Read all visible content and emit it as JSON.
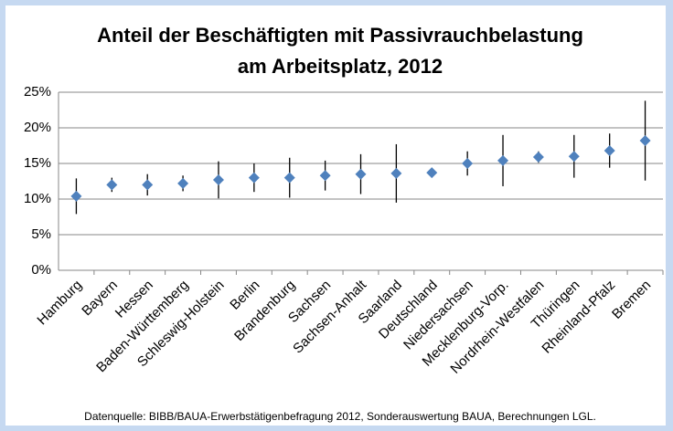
{
  "chart_data": {
    "type": "errorbar",
    "title": [
      "Anteil der Beschäftigten mit Passivrauchbelastung",
      "am Arbeitsplatz, 2012"
    ],
    "categories": [
      "Hamburg",
      "Bayern",
      "Hessen",
      "Baden-Württemberg",
      "Schleswig-Holstein",
      "Berlin",
      "Brandenburg",
      "Sachsen",
      "Sachsen-Anhalt",
      "Saarland",
      "Deutschland",
      "Niedersachsen",
      "Mecklenburg-Vorp.",
      "Nordrhein-Westfalen",
      "Thüringen",
      "Rheinland-Pfalz",
      "Bremen"
    ],
    "values": [
      10.4,
      12.0,
      12.0,
      12.2,
      12.7,
      13.0,
      13.0,
      13.3,
      13.5,
      13.6,
      13.7,
      15.0,
      15.4,
      15.9,
      16.0,
      16.8,
      18.2
    ],
    "errors": [
      2.5,
      1.0,
      1.5,
      1.1,
      2.6,
      2.0,
      2.8,
      2.1,
      2.8,
      4.1,
      0.2,
      1.7,
      3.6,
      0.8,
      3.0,
      2.4,
      5.6
    ],
    "color": "#4f81bd",
    "ylim": [
      0,
      25
    ],
    "yticks": [
      {
        "value": 0,
        "label": "0%"
      },
      {
        "value": 5,
        "label": "5%"
      },
      {
        "value": 10,
        "label": "10%"
      },
      {
        "value": 15,
        "label": "15%"
      },
      {
        "value": 20,
        "label": "20%"
      },
      {
        "value": 25,
        "label": "25%"
      }
    ],
    "grid": true,
    "note": "Datenquelle: BIBB/BAUA-Erwerbstätigenbefragung 2012, Sonderauswertung BAUA, Berechnungen LGL."
  }
}
